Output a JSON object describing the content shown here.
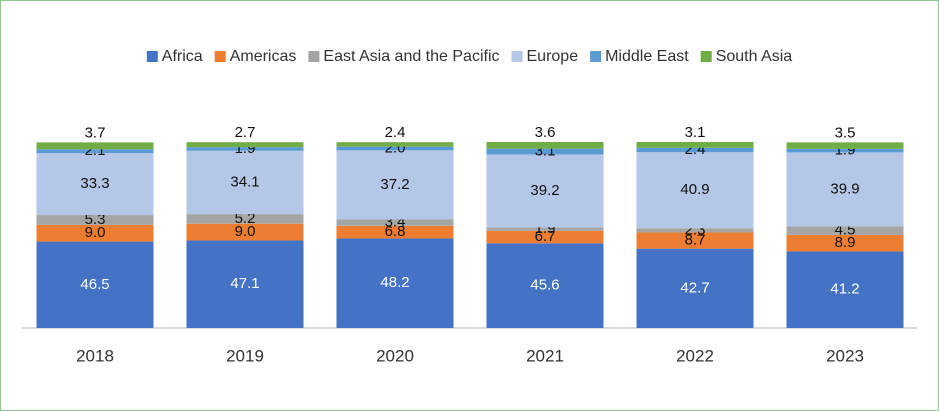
{
  "chart_data": {
    "type": "stacked_bar",
    "categories": [
      "2018",
      "2019",
      "2020",
      "2021",
      "2022",
      "2023"
    ],
    "series": [
      {
        "name": "Africa",
        "color": "#4472c4",
        "values": [
          46.5,
          47.1,
          48.2,
          45.6,
          42.7,
          41.2
        ],
        "value_labels": [
          "46.5",
          "47.1",
          "48.2",
          "45.6",
          "42.7",
          "41.2"
        ]
      },
      {
        "name": "Americas",
        "color": "#ed7d31",
        "values": [
          9.0,
          9.0,
          6.8,
          6.7,
          8.7,
          8.9
        ],
        "value_labels": [
          "9.0",
          "9.0",
          "6.8",
          "6.7",
          "8.7",
          "8.9"
        ]
      },
      {
        "name": "East Asia and the Pacific",
        "color": "#a5a5a5",
        "values": [
          5.3,
          5.2,
          3.4,
          1.9,
          2.3,
          4.5
        ],
        "value_labels": [
          "5.3",
          "5.2",
          "3.4",
          "1.9",
          "2.3",
          "4.5"
        ]
      },
      {
        "name": "Europe",
        "color": "#b4c7e7",
        "values": [
          33.3,
          34.1,
          37.2,
          39.2,
          40.9,
          39.9
        ],
        "value_labels": [
          "33.3",
          "34.1",
          "37.2",
          "39.2",
          "40.9",
          "39.9"
        ]
      },
      {
        "name": "Middle East",
        "color": "#5b9bd5",
        "values": [
          2.1,
          1.9,
          2.0,
          3.1,
          2.4,
          1.9
        ],
        "value_labels": [
          "2.1",
          "1.9",
          "2.0",
          "3.1",
          "2.4",
          "1.9"
        ]
      },
      {
        "name": "South Asia",
        "color": "#70ad47",
        "values": [
          3.7,
          2.7,
          2.4,
          3.6,
          3.1,
          3.5
        ],
        "value_labels": [
          "3.7",
          "2.7",
          "2.4",
          "3.6",
          "3.1",
          "3.5"
        ]
      }
    ]
  }
}
